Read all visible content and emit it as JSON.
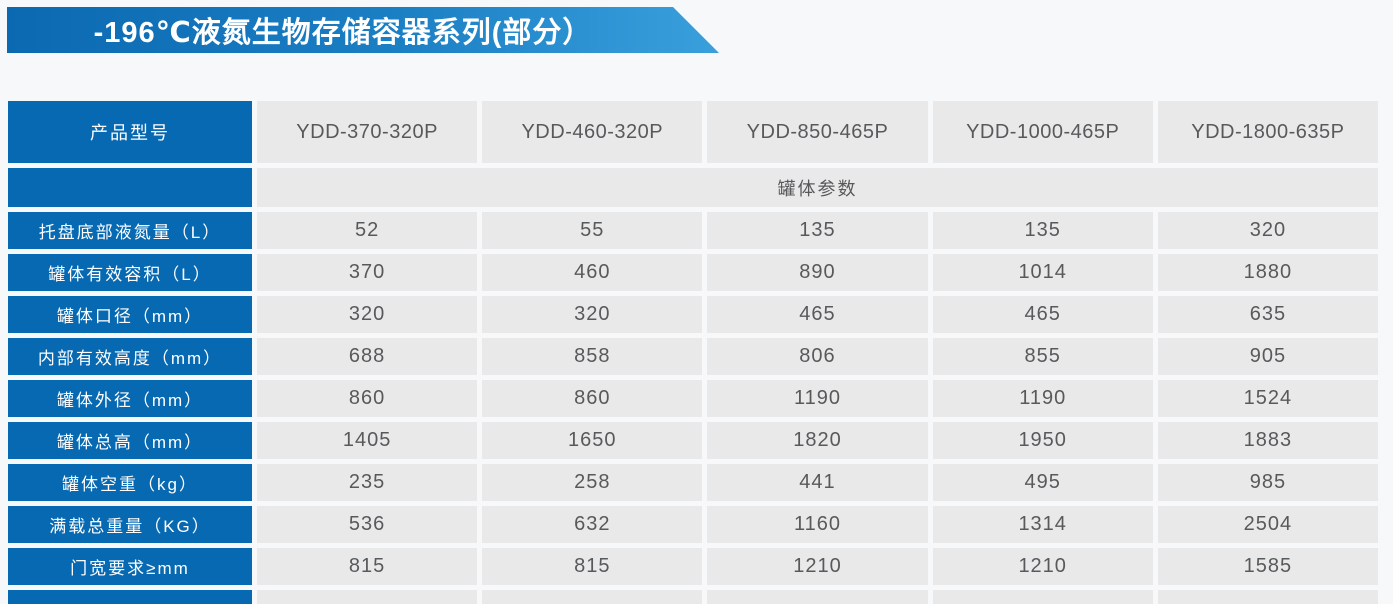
{
  "banner": {
    "title": "-196℃液氮生物存储容器系列(部分）"
  },
  "colors": {
    "primary_blue": "#0769b2",
    "banner_gradient_start": "#0b69b1",
    "banner_gradient_end": "#3aa0dc",
    "cell_gray": "#e9e9e9",
    "cell_text": "#58595b",
    "page_background": "#f7f8f9"
  },
  "table": {
    "corner_label": "产品型号",
    "models": [
      "YDD-370-320P",
      "YDD-460-320P",
      "YDD-850-465P",
      "YDD-1000-465P",
      "YDD-1800-635P"
    ],
    "section_label": "罐体参数",
    "rows": [
      {
        "label": "托盘底部液氮量（L）",
        "values": [
          "52",
          "55",
          "135",
          "135",
          "320"
        ]
      },
      {
        "label": "罐体有效容积（L）",
        "values": [
          "370",
          "460",
          "890",
          "1014",
          "1880"
        ]
      },
      {
        "label": "罐体口径（mm）",
        "values": [
          "320",
          "320",
          "465",
          "465",
          "635"
        ]
      },
      {
        "label": "内部有效高度（mm）",
        "values": [
          "688",
          "858",
          "806",
          "855",
          "905"
        ]
      },
      {
        "label": "罐体外径（mm）",
        "values": [
          "860",
          "860",
          "1190",
          "1190",
          "1524"
        ]
      },
      {
        "label": "罐体总高（mm）",
        "values": [
          "1405",
          "1650",
          "1820",
          "1950",
          "1883"
        ]
      },
      {
        "label": "罐体空重（kg）",
        "values": [
          "235",
          "258",
          "441",
          "495",
          "985"
        ]
      },
      {
        "label": "满载总重量（KG）",
        "values": [
          "536",
          "632",
          "1160",
          "1314",
          "2504"
        ]
      },
      {
        "label": "门宽要求≥mm",
        "values": [
          "815",
          "815",
          "1210",
          "1210",
          "1585"
        ]
      }
    ]
  }
}
